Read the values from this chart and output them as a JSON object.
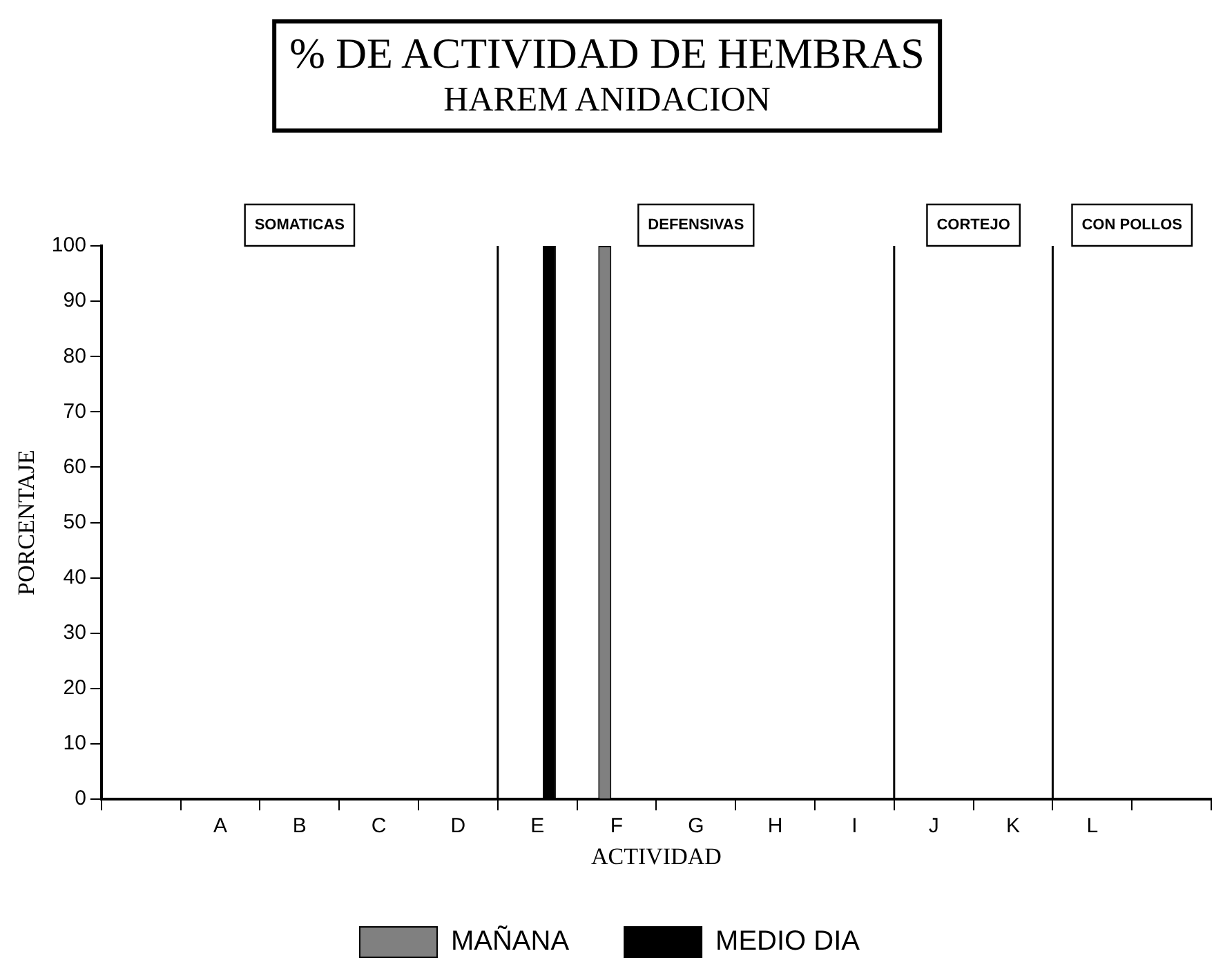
{
  "chart_data": {
    "type": "bar",
    "title": "% DE ACTIVIDAD DE HEMBRAS",
    "subtitle": "HAREM ANIDACION",
    "xlabel": "ACTIVIDAD",
    "ylabel": "PORCENTAJE",
    "categories": [
      null,
      "A",
      "B",
      "C",
      "D",
      "E",
      "F",
      "G",
      "H",
      "I",
      "J",
      "K",
      "L",
      null
    ],
    "series": [
      {
        "name": "MAÑANA",
        "color": "#808080",
        "values": [
          null,
          0,
          0,
          0,
          0,
          0,
          100,
          0,
          0,
          0,
          0,
          0,
          0,
          null
        ]
      },
      {
        "name": "MEDIO DIA",
        "color": "#000000",
        "values": [
          null,
          0,
          0,
          0,
          0,
          100,
          0,
          0,
          0,
          0,
          0,
          0,
          0,
          null
        ]
      }
    ],
    "annotations": [
      "SOMATICAS",
      "DEFENSIVAS",
      "CORTEJO",
      "CON POLLOS"
    ],
    "ylim": [
      0,
      100
    ],
    "yticks": [
      0,
      10,
      20,
      30,
      40,
      50,
      60,
      70,
      80,
      90,
      100
    ],
    "grid": false,
    "legend": "bottom"
  }
}
